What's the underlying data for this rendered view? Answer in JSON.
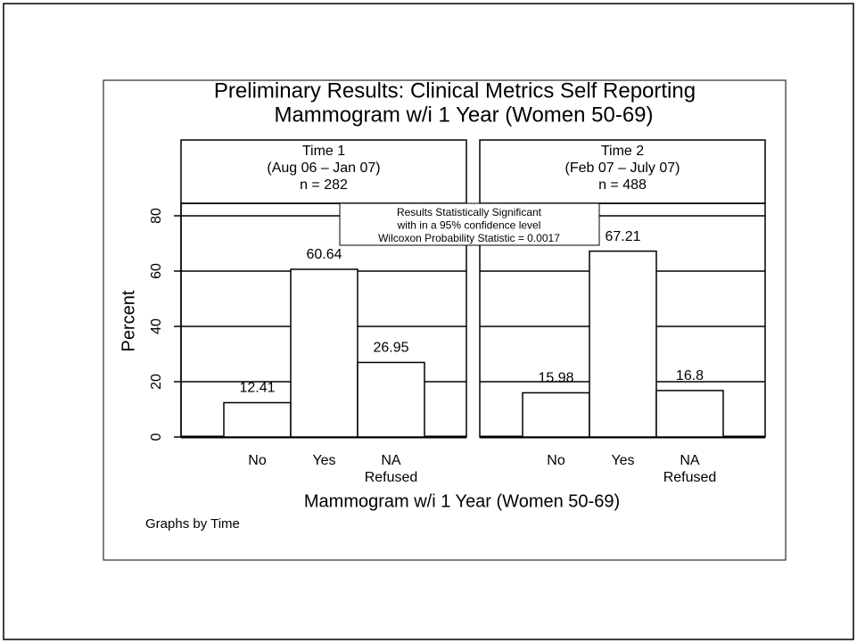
{
  "chart_data": {
    "type": "bar",
    "title": [
      "Preliminary Results: Clinical Metrics Self Reporting",
      "Mammogram w/i 1 Year (Women 50-69)"
    ],
    "ylabel": "Percent",
    "xlabel": "Mammogram w/i 1 Year (Women 50-69)",
    "note": "Graphs by Time",
    "annotation": [
      "Results Statistically Significant",
      "with in a 95% confidence level",
      "Wilcoxon Probability Statistic = 0.0017"
    ],
    "categories": [
      "No",
      "Yes",
      "NA\nRefused"
    ],
    "ylim": [
      0,
      84.5
    ],
    "yticks": [
      0,
      20,
      40,
      60,
      80
    ],
    "grid": true,
    "color": "#ffffff",
    "panels": [
      {
        "title": [
          "Time 1",
          "(Aug 06 – Jan 07)",
          "n = 282"
        ],
        "values": [
          12.41,
          60.64,
          26.95
        ]
      },
      {
        "title": [
          "Time 2",
          "(Feb 07 – July 07)",
          "n = 488"
        ],
        "values": [
          15.98,
          67.21,
          16.8
        ]
      }
    ]
  }
}
